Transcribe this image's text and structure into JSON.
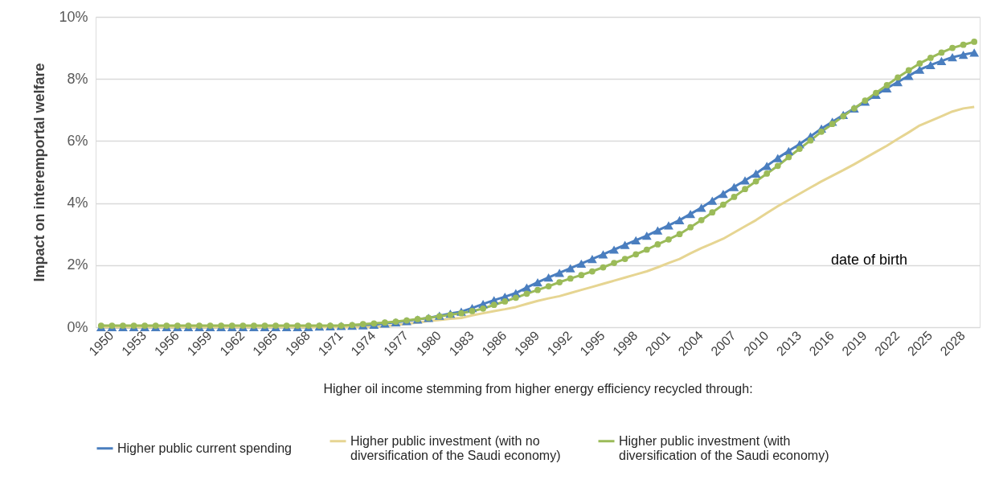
{
  "chart_data": {
    "type": "line",
    "ylabel": "Impact on interemportal welfare",
    "xlabel": "Higher oil income stemming from higher energy efficiency recycled through:",
    "categories": [
      "1950",
      null,
      null,
      "1953",
      null,
      null,
      "1956",
      null,
      null,
      "1959",
      null,
      null,
      "1962",
      null,
      null,
      "1965",
      null,
      null,
      "1968",
      null,
      null,
      "1971",
      null,
      null,
      "1974",
      null,
      null,
      "1977",
      null,
      null,
      "1980",
      null,
      null,
      "1983",
      null,
      null,
      "1986",
      null,
      null,
      "1989",
      null,
      null,
      "1992",
      null,
      null,
      "1995",
      null,
      null,
      "1998",
      null,
      null,
      "2001",
      null,
      null,
      "2004",
      null,
      null,
      "2007",
      null,
      null,
      "2010",
      null,
      null,
      "2013",
      null,
      null,
      "2016",
      null,
      null,
      "2019",
      null,
      null,
      "2022",
      null,
      null,
      "2025",
      null,
      null,
      "2028",
      null,
      null
    ],
    "series": [
      {
        "name": "Higher public current spending",
        "color": "#4a7ebf",
        "marker": "triangle",
        "values": [
          0,
          0,
          0,
          0,
          0,
          0,
          0,
          0,
          0,
          0,
          0,
          0,
          0,
          0,
          0,
          0,
          0,
          0,
          0,
          0,
          0.02,
          0.03,
          0.04,
          0.05,
          0.06,
          0.08,
          0.12,
          0.16,
          0.2,
          0.25,
          0.3,
          0.37,
          0.44,
          0.5,
          0.62,
          0.75,
          0.87,
          0.98,
          1.1,
          1.28,
          1.45,
          1.6,
          1.75,
          1.9,
          2.05,
          2.2,
          2.35,
          2.5,
          2.65,
          2.8,
          2.95,
          3.12,
          3.28,
          3.45,
          3.65,
          3.85,
          4.08,
          4.3,
          4.52,
          4.73,
          4.95,
          5.2,
          5.45,
          5.68,
          5.9,
          6.15,
          6.4,
          6.62,
          6.84,
          7.05,
          7.27,
          7.49,
          7.7,
          7.9,
          8.1,
          8.3,
          8.45,
          8.58,
          8.7,
          8.78,
          8.85
        ]
      },
      {
        "name": "Higher public investment (with no diversification of the Saudi economy)",
        "color": "#e6d592",
        "marker": "none",
        "values": [
          0,
          0,
          0,
          0,
          0,
          0,
          0,
          0,
          0,
          0,
          0,
          0,
          0,
          0,
          0,
          0,
          0,
          0,
          0,
          0,
          0,
          0,
          0,
          0,
          0,
          0,
          0.03,
          0.07,
          0.11,
          0.15,
          0.2,
          0.23,
          0.27,
          0.3,
          0.38,
          0.45,
          0.52,
          0.58,
          0.65,
          0.75,
          0.85,
          0.93,
          1.0,
          1.1,
          1.2,
          1.3,
          1.4,
          1.5,
          1.6,
          1.7,
          1.8,
          1.93,
          2.07,
          2.2,
          2.38,
          2.55,
          2.7,
          2.85,
          3.05,
          3.25,
          3.45,
          3.68,
          3.9,
          4.1,
          4.3,
          4.5,
          4.7,
          4.88,
          5.06,
          5.25,
          5.45,
          5.65,
          5.85,
          6.07,
          6.28,
          6.5,
          6.65,
          6.8,
          6.95,
          7.05,
          7.1
        ]
      },
      {
        "name": "Higher public investment (with diversification of the Saudi economy)",
        "color": "#9bbb59",
        "marker": "circle",
        "values": [
          0.05,
          0.05,
          0.05,
          0.05,
          0.05,
          0.05,
          0.05,
          0.05,
          0.05,
          0.05,
          0.05,
          0.05,
          0.05,
          0.05,
          0.05,
          0.05,
          0.05,
          0.05,
          0.05,
          0.05,
          0.05,
          0.05,
          0.05,
          0.07,
          0.1,
          0.12,
          0.15,
          0.18,
          0.22,
          0.26,
          0.3,
          0.35,
          0.4,
          0.45,
          0.52,
          0.6,
          0.72,
          0.83,
          0.95,
          1.08,
          1.2,
          1.32,
          1.45,
          1.57,
          1.68,
          1.8,
          1.93,
          2.07,
          2.2,
          2.35,
          2.5,
          2.67,
          2.83,
          3.0,
          3.22,
          3.45,
          3.7,
          3.95,
          4.2,
          4.45,
          4.7,
          4.95,
          5.2,
          5.48,
          5.75,
          6.02,
          6.3,
          6.55,
          6.8,
          7.05,
          7.3,
          7.55,
          7.8,
          8.05,
          8.28,
          8.5,
          8.68,
          8.85,
          9.0,
          9.1,
          9.2
        ]
      }
    ],
    "ylim": [
      0,
      10
    ],
    "yticks": [
      {
        "value": 0,
        "label": "0%"
      },
      {
        "value": 2,
        "label": "2%"
      },
      {
        "value": 4,
        "label": "4%"
      },
      {
        "value": 6,
        "label": "6%"
      },
      {
        "value": 8,
        "label": "8%"
      },
      {
        "value": 10,
        "label": "10%"
      }
    ],
    "grid": "y",
    "legend": "bottom",
    "line_style": "solid",
    "annotations": [
      "date of birth"
    ]
  }
}
